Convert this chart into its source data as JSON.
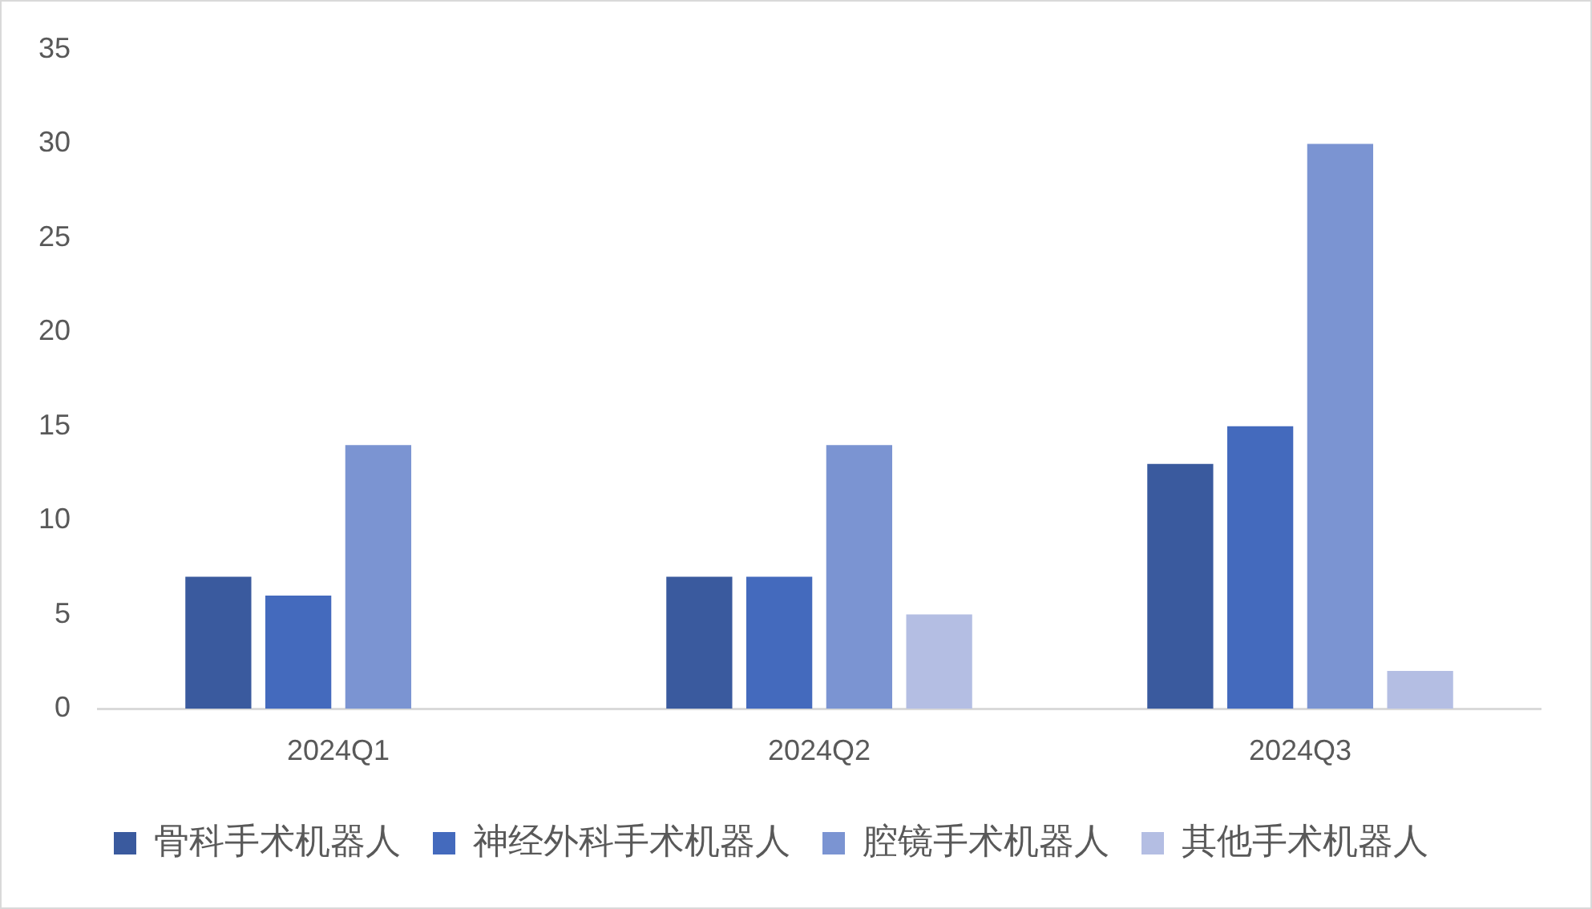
{
  "chart_data": {
    "type": "bar",
    "categories": [
      "2024Q1",
      "2024Q2",
      "2024Q3"
    ],
    "series": [
      {
        "name": "骨科手术机器人",
        "color": "#3a5a9e",
        "values": [
          7,
          7,
          13
        ]
      },
      {
        "name": "神经外科手术机器人",
        "color": "#446abd",
        "values": [
          6,
          7,
          15
        ]
      },
      {
        "name": "腔镜手术机器人",
        "color": "#7b94d2",
        "values": [
          14,
          14,
          30
        ]
      },
      {
        "name": "其他手术机器人",
        "color": "#b4bee3",
        "values": [
          null,
          5,
          2
        ]
      }
    ],
    "ylim": [
      0,
      35
    ],
    "yticks": [
      0,
      5,
      10,
      15,
      20,
      25,
      30,
      35
    ],
    "grid": false,
    "legend": "bottom"
  }
}
